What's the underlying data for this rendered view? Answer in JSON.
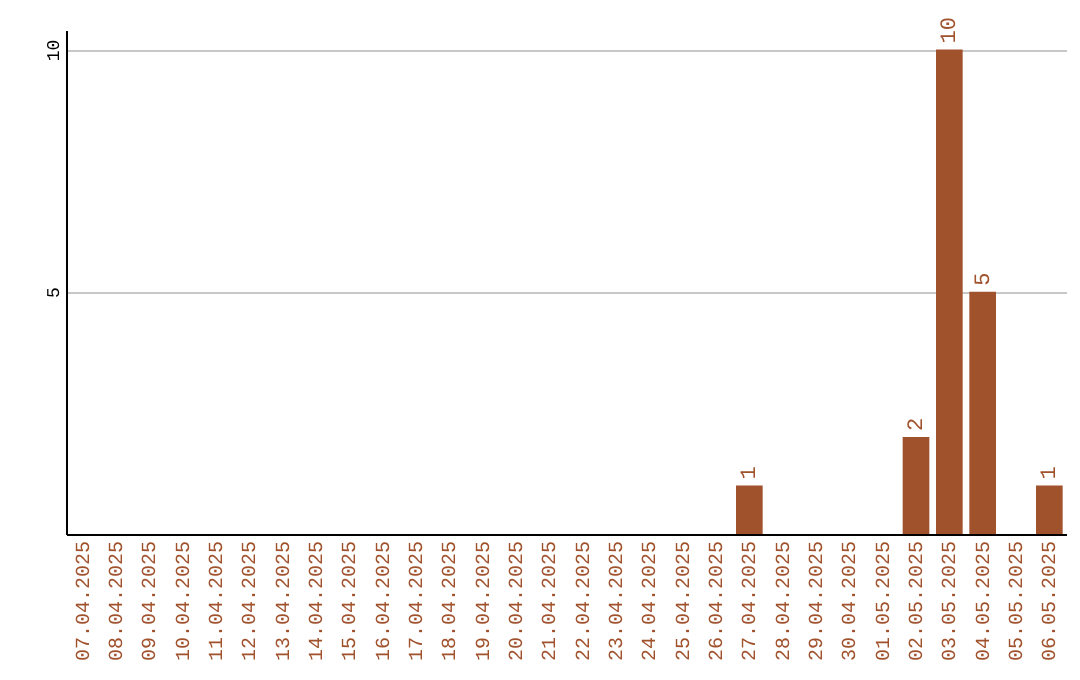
{
  "chart_data": {
    "type": "bar",
    "categories": [
      "07.04.2025",
      "08.04.2025",
      "09.04.2025",
      "10.04.2025",
      "11.04.2025",
      "12.04.2025",
      "13.04.2025",
      "14.04.2025",
      "15.04.2025",
      "16.04.2025",
      "17.04.2025",
      "18.04.2025",
      "19.04.2025",
      "20.04.2025",
      "21.04.2025",
      "22.04.2025",
      "23.04.2025",
      "24.04.2025",
      "25.04.2025",
      "26.04.2025",
      "27.04.2025",
      "28.04.2025",
      "29.04.2025",
      "30.04.2025",
      "01.05.2025",
      "02.05.2025",
      "03.05.2025",
      "04.05.2025",
      "05.05.2025",
      "06.05.2025"
    ],
    "values": [
      0,
      0,
      0,
      0,
      0,
      0,
      0,
      0,
      0,
      0,
      0,
      0,
      0,
      0,
      0,
      0,
      0,
      0,
      0,
      0,
      1,
      0,
      0,
      0,
      0,
      2,
      10,
      5,
      0,
      1
    ],
    "value_labels": [
      null,
      null,
      null,
      null,
      null,
      null,
      null,
      null,
      null,
      null,
      null,
      null,
      null,
      null,
      null,
      null,
      null,
      null,
      null,
      null,
      "1",
      null,
      null,
      null,
      null,
      "2",
      "10",
      "5",
      null,
      "1"
    ],
    "color": "#a0522d",
    "ylim": [
      0,
      10.4
    ],
    "yticks": [
      5,
      10
    ],
    "grid": "y"
  }
}
